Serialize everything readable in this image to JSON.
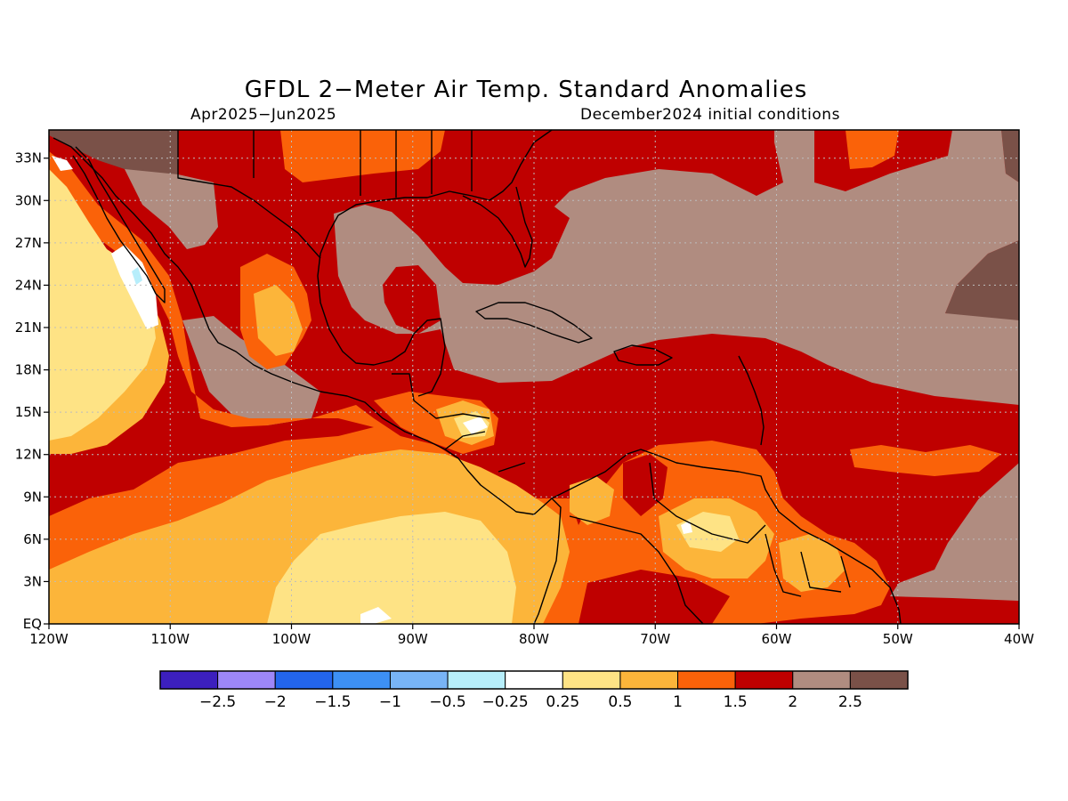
{
  "title": "GFDL 2−Meter Air Temp. Standard Anomalies",
  "period": "Apr2025−Jun2025",
  "initial_conditions": "December2024 initial conditions",
  "map": {
    "lon_range": [
      -120,
      -40
    ],
    "lat_range": [
      0,
      35
    ],
    "grid": true,
    "lon_ticks": [
      {
        "value": -120,
        "label": "120W"
      },
      {
        "value": -110,
        "label": "110W"
      },
      {
        "value": -100,
        "label": "100W"
      },
      {
        "value": -90,
        "label": "90W"
      },
      {
        "value": -80,
        "label": "80W"
      },
      {
        "value": -70,
        "label": "70W"
      },
      {
        "value": -60,
        "label": "60W"
      },
      {
        "value": -50,
        "label": "50W"
      },
      {
        "value": -40,
        "label": "40W"
      }
    ],
    "lat_ticks": [
      {
        "value": 0,
        "label": "EQ"
      },
      {
        "value": 3,
        "label": "3N"
      },
      {
        "value": 6,
        "label": "6N"
      },
      {
        "value": 9,
        "label": "9N"
      },
      {
        "value": 12,
        "label": "12N"
      },
      {
        "value": 15,
        "label": "15N"
      },
      {
        "value": 18,
        "label": "18N"
      },
      {
        "value": 21,
        "label": "21N"
      },
      {
        "value": 24,
        "label": "24N"
      },
      {
        "value": 27,
        "label": "27N"
      },
      {
        "value": 30,
        "label": "30N"
      },
      {
        "value": 33,
        "label": "33N"
      }
    ]
  },
  "colorbar": {
    "colors": [
      "#3c1fbe",
      "#9d87f8",
      "#2365ec",
      "#3d90f4",
      "#78b4f6",
      "#b7eefb",
      "#ffffff",
      "#fee385",
      "#fcb53a",
      "#fa6209",
      "#bf0000",
      "#b08c80",
      "#7a5148"
    ],
    "labels": [
      "−2.5",
      "−2",
      "−1.5",
      "−1",
      "−0.5",
      "−0.25",
      "0.25",
      "0.5",
      "1",
      "1.5",
      "2",
      "2.5"
    ]
  }
}
